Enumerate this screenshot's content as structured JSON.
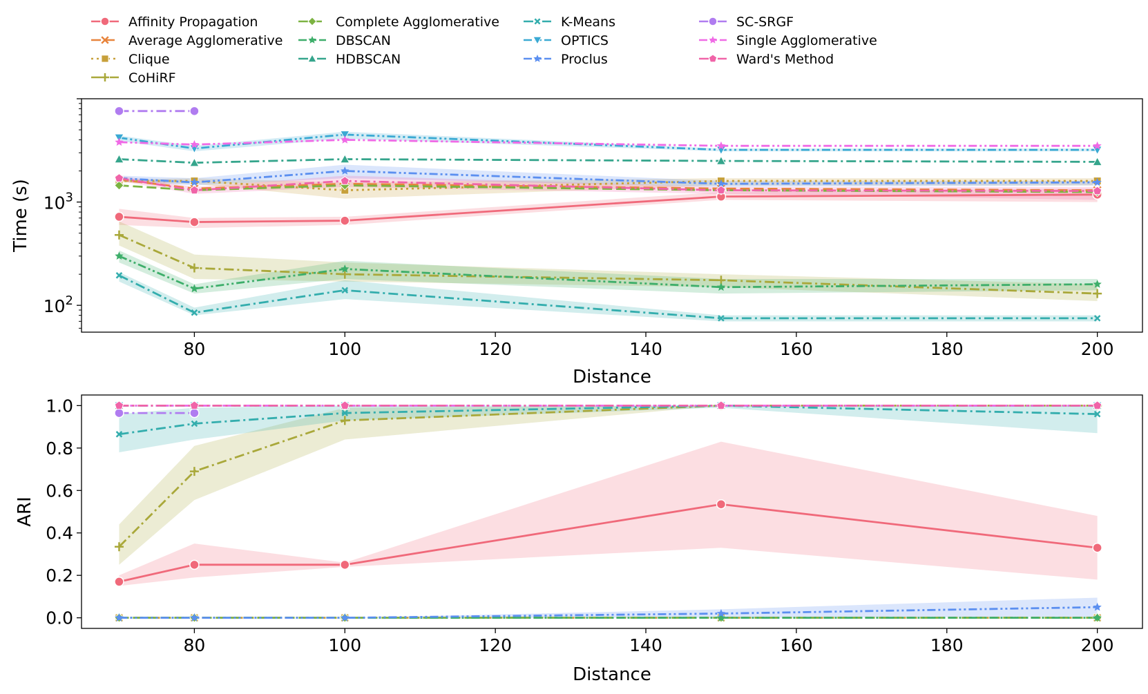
{
  "legend": {
    "placement": "top",
    "entries": [
      {
        "name": "Affinity Propagation",
        "color": "#f0697a",
        "dash": "solid",
        "marker": "circle"
      },
      {
        "name": "Average Agglomerative",
        "color": "#e8843c",
        "dash": "dash",
        "marker": "x"
      },
      {
        "name": "Clique",
        "color": "#c7a03a",
        "dash": "dot",
        "marker": "square"
      },
      {
        "name": "CoHiRF",
        "color": "#a9a83a",
        "dash": "dashdot",
        "marker": "plus"
      },
      {
        "name": "Complete Agglomerative",
        "color": "#7cb342",
        "dash": "dash",
        "marker": "diamond"
      },
      {
        "name": "DBSCAN",
        "color": "#3dae6a",
        "dash": "dashdotdot",
        "marker": "star"
      },
      {
        "name": "HDBSCAN",
        "color": "#35a58c",
        "dash": "dashdot",
        "marker": "triangle-up"
      },
      {
        "name": "K-Means",
        "color": "#33adad",
        "dash": "dashdot",
        "marker": "xsmall"
      },
      {
        "name": "OPTICS",
        "color": "#3aa9d3",
        "dash": "dashdotdot",
        "marker": "triangle-down"
      },
      {
        "name": "Proclus",
        "color": "#5b8ff0",
        "dash": "dashdotdot",
        "marker": "star"
      },
      {
        "name": "SC-SRGF",
        "color": "#b07cf0",
        "dash": "dashdot",
        "marker": "circle"
      },
      {
        "name": "Single Agglomerative",
        "color": "#f06ae6",
        "dash": "dashdotdot",
        "marker": "star"
      },
      {
        "name": "Ward's Method",
        "color": "#f064a8",
        "dash": "dashdot",
        "marker": "pentagon"
      }
    ]
  },
  "chart_data": [
    {
      "type": "line",
      "xlabel": "Distance",
      "ylabel": "Time (s)",
      "yscale": "log",
      "xlim": [
        65,
        206
      ],
      "ylim": [
        55,
        10000
      ],
      "x_ticks": [
        80,
        100,
        120,
        140,
        160,
        180,
        200
      ],
      "y_ticks": [
        {
          "value": 100,
          "base": "10",
          "exp": "2"
        },
        {
          "value": 1000,
          "base": "10",
          "exp": "3"
        }
      ],
      "grid": false,
      "x": [
        70,
        80,
        100,
        150,
        200
      ],
      "series": [
        {
          "name": "Affinity Propagation",
          "values": [
            720,
            640,
            660,
            1130,
            1180
          ],
          "band": [
            [
              860,
              600
            ],
            [
              700,
              560
            ],
            [
              720,
              600
            ],
            [
              1250,
              1050
            ],
            [
              1350,
              1000
            ]
          ]
        },
        {
          "name": "Average Agglomerative",
          "values": [
            1650,
            1350,
            1500,
            1350,
            1300
          ]
        },
        {
          "name": "Clique",
          "values": [
            1600,
            1600,
            1300,
            1600,
            1600
          ],
          "band": [
            [
              1650,
              1550
            ],
            [
              1700,
              1500
            ],
            [
              1550,
              1080
            ],
            [
              1700,
              1450
            ],
            [
              1700,
              1450
            ]
          ]
        },
        {
          "name": "CoHiRF",
          "values": [
            480,
            230,
            200,
            175,
            130
          ],
          "band": [
            [
              650,
              380
            ],
            [
              310,
              180
            ],
            [
              260,
              170
            ],
            [
              200,
              150
            ],
            [
              160,
              110
            ]
          ]
        },
        {
          "name": "Complete Agglomerative",
          "values": [
            1450,
            1300,
            1450,
            1300,
            1250
          ]
        },
        {
          "name": "DBSCAN",
          "values": [
            300,
            145,
            225,
            150,
            160
          ],
          "band": [
            [
              340,
              260
            ],
            [
              160,
              130
            ],
            [
              270,
              180
            ],
            [
              180,
              130
            ],
            [
              180,
              140
            ]
          ]
        },
        {
          "name": "HDBSCAN",
          "values": [
            2600,
            2400,
            2600,
            2500,
            2450
          ]
        },
        {
          "name": "K-Means",
          "values": [
            195,
            85,
            140,
            75,
            75
          ],
          "band": [
            [
              210,
              170
            ],
            [
              95,
              80
            ],
            [
              175,
              115
            ],
            [
              80,
              70
            ],
            [
              80,
              70
            ]
          ]
        },
        {
          "name": "OPTICS",
          "values": [
            4200,
            3300,
            4500,
            3200,
            3200
          ],
          "band": [
            [
              4400,
              3900
            ],
            [
              3500,
              3100
            ],
            [
              4800,
              4100
            ],
            [
              3300,
              3100
            ],
            [
              3300,
              3100
            ]
          ]
        },
        {
          "name": "Proclus",
          "values": [
            1700,
            1550,
            2000,
            1500,
            1550
          ],
          "band": [
            [
              1800,
              1600
            ],
            [
              1700,
              1450
            ],
            [
              2300,
              1700
            ],
            [
              1600,
              1400
            ],
            [
              1600,
              1450
            ]
          ]
        },
        {
          "name": "SC-SRGF",
          "x": [
            70,
            80
          ],
          "values": [
            7600,
            7600
          ]
        },
        {
          "name": "Single Agglomerative",
          "values": [
            3800,
            3600,
            4000,
            3500,
            3500
          ]
        },
        {
          "name": "Ward's Method",
          "values": [
            1700,
            1300,
            1600,
            1300,
            1280
          ],
          "band": [
            [
              1800,
              1600
            ],
            [
              1400,
              1200
            ],
            [
              1800,
              1400
            ],
            [
              1400,
              1200
            ],
            [
              1400,
              1050
            ]
          ]
        }
      ]
    },
    {
      "type": "line",
      "xlabel": "Distance",
      "ylabel": "ARI",
      "yscale": "linear",
      "xlim": [
        65,
        206
      ],
      "ylim": [
        -0.05,
        1.05
      ],
      "x_ticks": [
        80,
        100,
        120,
        140,
        160,
        180,
        200
      ],
      "y_ticks": [
        0.0,
        0.2,
        0.4,
        0.6,
        0.8,
        1.0
      ],
      "y_tick_labels": [
        "0.0",
        "0.2",
        "0.4",
        "0.6",
        "0.8",
        "1.0"
      ],
      "grid": false,
      "x": [
        70,
        80,
        100,
        150,
        200
      ],
      "series": [
        {
          "name": "Affinity Propagation",
          "values": [
            0.17,
            0.25,
            0.25,
            0.535,
            0.33
          ],
          "band": [
            [
              0.2,
              0.15
            ],
            [
              0.35,
              0.19
            ],
            [
              0.26,
              0.24
            ],
            [
              0.83,
              0.33
            ],
            [
              0.48,
              0.18
            ]
          ]
        },
        {
          "name": "Average Agglomerative",
          "values": [
            0.0,
            0.0,
            0.0,
            0.0,
            0.0
          ]
        },
        {
          "name": "Clique",
          "values": [
            0.0,
            0.0,
            0.0,
            0.0,
            0.0
          ]
        },
        {
          "name": "CoHiRF",
          "values": [
            0.335,
            0.69,
            0.93,
            1.0,
            1.0
          ],
          "band": [
            [
              0.44,
              0.25
            ],
            [
              0.81,
              0.555
            ],
            [
              0.99,
              0.84
            ],
            [
              1.0,
              1.0
            ],
            [
              1.0,
              1.0
            ]
          ]
        },
        {
          "name": "Complete Agglomerative",
          "values": [
            0.0,
            0.0,
            0.0,
            0.0,
            0.0
          ]
        },
        {
          "name": "DBSCAN",
          "values": [
            0.0,
            0.0,
            0.0,
            0.0,
            0.0
          ]
        },
        {
          "name": "HDBSCAN",
          "values": [
            1.0,
            1.0,
            1.0,
            1.0,
            1.0
          ]
        },
        {
          "name": "K-Means",
          "values": [
            0.865,
            0.915,
            0.965,
            1.0,
            0.96
          ],
          "band": [
            [
              0.96,
              0.78
            ],
            [
              0.99,
              0.84
            ],
            [
              1.0,
              0.93
            ],
            [
              1.0,
              0.99
            ],
            [
              1.0,
              0.87
            ]
          ]
        },
        {
          "name": "OPTICS",
          "values": [
            1.0,
            1.0,
            1.0,
            1.0,
            1.0
          ]
        },
        {
          "name": "Proclus",
          "values": [
            0.0,
            0.0,
            0.0,
            0.02,
            0.05
          ],
          "band": [
            [
              0.0,
              0.0
            ],
            [
              0.0,
              0.0
            ],
            [
              0.0,
              0.0
            ],
            [
              0.04,
              0.0
            ],
            [
              0.095,
              0.005
            ]
          ]
        },
        {
          "name": "SC-SRGF",
          "x": [
            70,
            80
          ],
          "values": [
            0.965,
            0.965
          ]
        },
        {
          "name": "Single Agglomerative",
          "values": [
            1.0,
            1.0,
            1.0,
            1.0,
            1.0
          ]
        },
        {
          "name": "Ward's Method",
          "values": [
            1.0,
            1.0,
            1.0,
            1.0,
            1.0
          ]
        }
      ]
    }
  ]
}
